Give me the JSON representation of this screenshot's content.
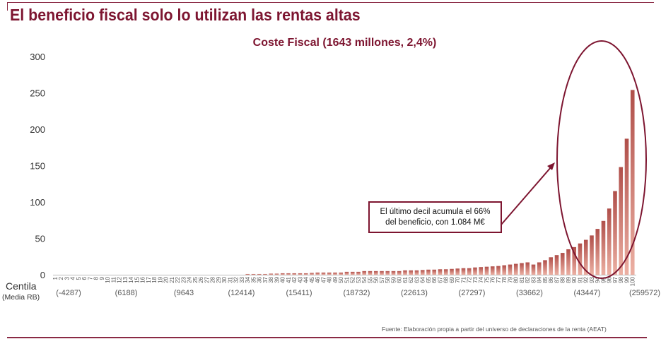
{
  "header": {
    "title": "El beneficio fiscal solo lo utilizan las rentas altas"
  },
  "source": "Fuente: Elaboración propia a partir del universo de declaraciones de la renta (AEAT)",
  "annotation": {
    "line1": "El último decil acumula el 66%",
    "line2": "del beneficio, con 1.084 M€"
  },
  "colors": {
    "accent": "#7d1530",
    "bar_top": "#b04f4a",
    "bar_bottom": "#ecb0a3"
  },
  "chart_data": {
    "type": "bar",
    "title": "Coste Fiscal (1643 millones, 2,4%)",
    "xlabel": "Centila",
    "xlabel2": "(Media RB)",
    "ylim": [
      0,
      300
    ],
    "yticks": [
      0,
      50,
      100,
      150,
      200,
      250,
      300
    ],
    "grid": false,
    "categories": [
      "1",
      "2",
      "3",
      "4",
      "5",
      "6",
      "7",
      "8",
      "9",
      "10",
      "11",
      "12",
      "13",
      "14",
      "15",
      "16",
      "17",
      "18",
      "19",
      "20",
      "21",
      "22",
      "23",
      "24",
      "25",
      "26",
      "27",
      "28",
      "29",
      "30",
      "31",
      "32",
      "33",
      "34",
      "35",
      "36",
      "37",
      "38",
      "39",
      "40",
      "41",
      "42",
      "43",
      "44",
      "45",
      "46",
      "47",
      "48",
      "49",
      "50",
      "51",
      "52",
      "53",
      "54",
      "55",
      "56",
      "57",
      "58",
      "59",
      "60",
      "61",
      "62",
      "63",
      "64",
      "65",
      "66",
      "67",
      "68",
      "69",
      "70",
      "71",
      "72",
      "73",
      "74",
      "75",
      "76",
      "77",
      "78",
      "79",
      "80",
      "81",
      "82",
      "83",
      "84",
      "85",
      "86",
      "87",
      "88",
      "89",
      "90",
      "91",
      "92",
      "93",
      "94",
      "95",
      "96",
      "97",
      "98",
      "99",
      "100"
    ],
    "values": [
      0,
      0,
      0,
      0,
      0,
      0,
      0,
      0,
      0,
      0,
      0,
      0,
      0,
      0,
      0,
      0,
      0,
      0,
      0,
      0,
      0,
      0,
      0,
      0,
      0,
      0,
      0,
      0,
      0,
      0,
      0,
      0,
      0,
      1,
      1,
      1,
      1,
      1.5,
      1.5,
      2,
      2,
      2,
      2,
      2,
      2.5,
      3,
      3,
      3,
      3,
      3,
      4,
      4,
      4,
      5,
      5,
      5,
      5,
      5,
      5,
      5,
      6,
      6,
      6,
      6.5,
      7,
      7,
      7.5,
      7.5,
      8,
      8.5,
      9,
      9,
      10,
      10.5,
      11,
      11.5,
      12,
      13,
      14,
      15,
      16,
      17,
      14,
      17,
      20,
      24,
      27,
      30,
      35,
      38,
      43,
      48,
      54,
      63,
      74,
      91,
      115,
      148,
      187,
      254
    ],
    "media_rb_labels": [
      "(-4287)",
      "(6188)",
      "(9643",
      "(12414)",
      "(15411)",
      "(18732)",
      "(22613)",
      "(27297)",
      "(33662)",
      "(43447)",
      "(259572)"
    ]
  }
}
